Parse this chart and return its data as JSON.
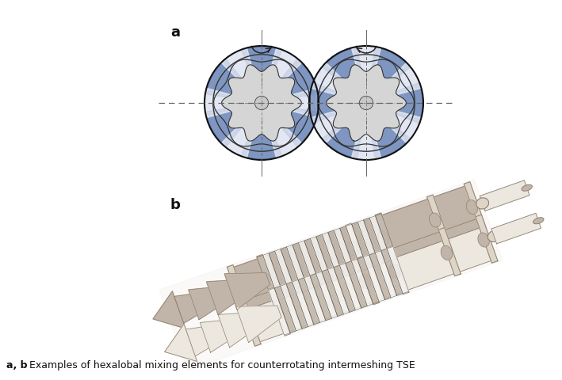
{
  "label_a": "a",
  "label_b": "b",
  "caption_bold": "a, b",
  "caption_regular": " Examples of hexalobal mixing elements for counterrotating intermeshing TSE",
  "bg_color": "#ffffff",
  "label_fontsize": 13,
  "caption_fontsize": 9,
  "fig_width": 7.09,
  "fig_height": 4.8,
  "dpi": 100,
  "barrel_blue_light": "#c5d0e8",
  "barrel_blue_mid": "#8fa8d0",
  "barrel_blue_dark": "#5070a8",
  "barrel_white": "#f0f2f8",
  "rotor_grey": "#d5d5d5",
  "rotor_edge": "#333333",
  "arrow_color": "#222222",
  "dash_color": "#666666",
  "body_light": "#ddd5c8",
  "body_mid": "#c0b5a8",
  "body_dark": "#908070"
}
